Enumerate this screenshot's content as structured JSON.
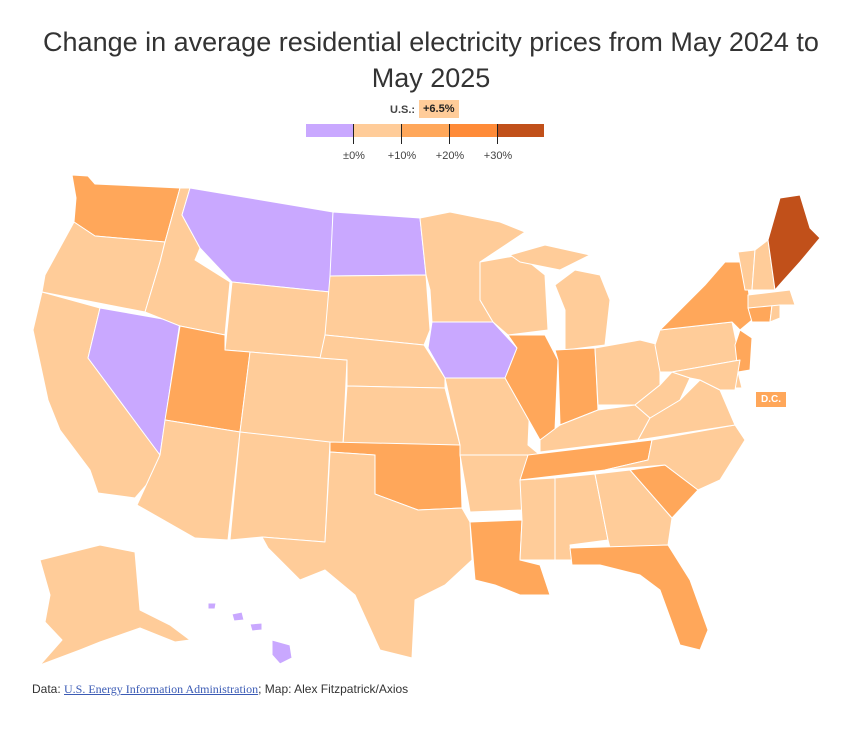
{
  "title": "Change in average residential electricity prices from May 2024 to May 2025",
  "national": {
    "label": "U.S.:",
    "value": "+6.5%",
    "color": "#ffcc99"
  },
  "legend": {
    "colors": [
      "#c9a8ff",
      "#ffcc99",
      "#ffa75a",
      "#ff8b38",
      "#c1501a"
    ],
    "ticks": [
      "±0%",
      "+10%",
      "+20%",
      "+30%"
    ]
  },
  "dc": {
    "label": "D.C.",
    "color": "#ffa75a"
  },
  "source": {
    "prefix": "Data: ",
    "link_text": "U.S. Energy Information Administration",
    "suffix": "; Map: Alex Fitzpatrick/Axios"
  },
  "chart_data": {
    "type": "choropleth",
    "title": "Change in average residential electricity prices from May 2024 to May 2025",
    "legend_bins": [
      "below 0%",
      "0% to +10%",
      "+10% to +20%",
      "+20% to +30%",
      "above +30%"
    ],
    "states": [
      {
        "abbr": "WA",
        "bin": 2
      },
      {
        "abbr": "OR",
        "bin": 1
      },
      {
        "abbr": "CA",
        "bin": 1
      },
      {
        "abbr": "NV",
        "bin": 0
      },
      {
        "abbr": "ID",
        "bin": 1
      },
      {
        "abbr": "MT",
        "bin": 0
      },
      {
        "abbr": "WY",
        "bin": 1
      },
      {
        "abbr": "UT",
        "bin": 2
      },
      {
        "abbr": "AZ",
        "bin": 1
      },
      {
        "abbr": "CO",
        "bin": 1
      },
      {
        "abbr": "NM",
        "bin": 1
      },
      {
        "abbr": "ND",
        "bin": 0
      },
      {
        "abbr": "SD",
        "bin": 1
      },
      {
        "abbr": "NE",
        "bin": 1
      },
      {
        "abbr": "KS",
        "bin": 1
      },
      {
        "abbr": "OK",
        "bin": 2
      },
      {
        "abbr": "TX",
        "bin": 1
      },
      {
        "abbr": "MN",
        "bin": 1
      },
      {
        "abbr": "IA",
        "bin": 0
      },
      {
        "abbr": "MO",
        "bin": 1
      },
      {
        "abbr": "AR",
        "bin": 1
      },
      {
        "abbr": "LA",
        "bin": 2
      },
      {
        "abbr": "WI",
        "bin": 1
      },
      {
        "abbr": "IL",
        "bin": 2
      },
      {
        "abbr": "MI",
        "bin": 1
      },
      {
        "abbr": "IN",
        "bin": 2
      },
      {
        "abbr": "OH",
        "bin": 1
      },
      {
        "abbr": "KY",
        "bin": 1
      },
      {
        "abbr": "TN",
        "bin": 2
      },
      {
        "abbr": "MS",
        "bin": 1
      },
      {
        "abbr": "AL",
        "bin": 1
      },
      {
        "abbr": "GA",
        "bin": 1
      },
      {
        "abbr": "FL",
        "bin": 2
      },
      {
        "abbr": "SC",
        "bin": 2
      },
      {
        "abbr": "NC",
        "bin": 1
      },
      {
        "abbr": "VA",
        "bin": 1
      },
      {
        "abbr": "WV",
        "bin": 1
      },
      {
        "abbr": "PA",
        "bin": 1
      },
      {
        "abbr": "NY",
        "bin": 2
      },
      {
        "abbr": "NJ",
        "bin": 2
      },
      {
        "abbr": "DE",
        "bin": 1
      },
      {
        "abbr": "MD",
        "bin": 1
      },
      {
        "abbr": "CT",
        "bin": 2
      },
      {
        "abbr": "RI",
        "bin": 1
      },
      {
        "abbr": "MA",
        "bin": 1
      },
      {
        "abbr": "VT",
        "bin": 1
      },
      {
        "abbr": "NH",
        "bin": 1
      },
      {
        "abbr": "ME",
        "bin": 4
      },
      {
        "abbr": "AK",
        "bin": 1
      },
      {
        "abbr": "HI",
        "bin": 0
      },
      {
        "abbr": "DC",
        "bin": 2
      }
    ]
  }
}
